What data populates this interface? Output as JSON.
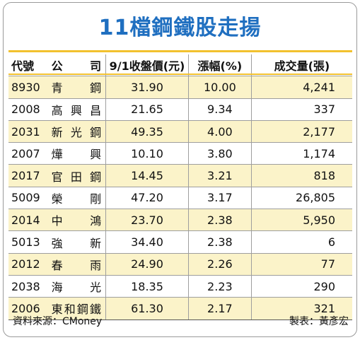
{
  "title": "11檔鋼鐵股走揚",
  "headers": {
    "code": "代號",
    "name_chars": [
      "公",
      "司"
    ],
    "close": "9/1收盤價(元)",
    "change": "漲幅(%)",
    "volume": "成交量(張)"
  },
  "rows": [
    {
      "code": "8930",
      "name_chars": [
        "青",
        "鋼"
      ],
      "close": "31.90",
      "change": "10.00",
      "volume": "4,241"
    },
    {
      "code": "2008",
      "name_chars": [
        "高",
        "興",
        "昌"
      ],
      "close": "21.65",
      "change": "9.34",
      "volume": "337"
    },
    {
      "code": "2031",
      "name_chars": [
        "新",
        "光",
        "鋼"
      ],
      "close": "49.35",
      "change": "4.00",
      "volume": "2,177"
    },
    {
      "code": "2007",
      "name_chars": [
        "燁",
        "興"
      ],
      "close": "10.10",
      "change": "3.80",
      "volume": "1,174"
    },
    {
      "code": "2017",
      "name_chars": [
        "官",
        "田",
        "鋼"
      ],
      "close": "14.45",
      "change": "3.21",
      "volume": "818"
    },
    {
      "code": "5009",
      "name_chars": [
        "榮",
        "剛"
      ],
      "close": "47.20",
      "change": "3.17",
      "volume": "26,805"
    },
    {
      "code": "2014",
      "name_chars": [
        "中",
        "鴻"
      ],
      "close": "23.70",
      "change": "2.38",
      "volume": "5,950"
    },
    {
      "code": "5013",
      "name_chars": [
        "強",
        "新"
      ],
      "close": "34.40",
      "change": "2.38",
      "volume": "6"
    },
    {
      "code": "2012",
      "name_chars": [
        "春",
        "雨"
      ],
      "close": "24.90",
      "change": "2.26",
      "volume": "77"
    },
    {
      "code": "2038",
      "name_chars": [
        "海",
        "光"
      ],
      "close": "18.35",
      "change": "2.23",
      "volume": "290"
    },
    {
      "code": "2006",
      "name_chars": [
        "東",
        "和",
        "鋼",
        "鐵"
      ],
      "close": "61.30",
      "change": "2.17",
      "volume": "321"
    }
  ],
  "footer": {
    "source": "資料來源：CMoney",
    "credit": "製表：黃彥宏"
  },
  "colors": {
    "title": "#1f6fc0",
    "accent_line": "#f2c12e",
    "alt_row": "#fbf3c9"
  }
}
